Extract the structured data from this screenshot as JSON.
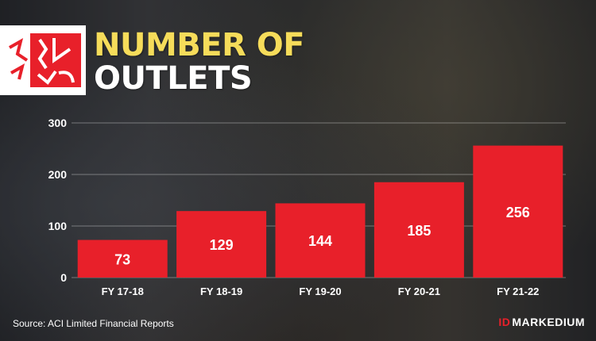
{
  "title": {
    "line1": "NUMBER OF",
    "line2": "OUTLETS"
  },
  "source": "Source: ACI Limited Financial Reports",
  "brand": {
    "mark": "ID",
    "name": "MARKEDIUM"
  },
  "logo_icon": "shwapno-logo-icon",
  "colors": {
    "bar": "#e8202a",
    "title_accent": "#f6dc5a",
    "text": "#ffffff"
  },
  "chart_data": {
    "type": "bar",
    "categories": [
      "FY 17-18",
      "FY 18-19",
      "FY 19-20",
      "FY 20-21",
      "FY 21-22"
    ],
    "values": [
      73,
      129,
      144,
      185,
      256
    ],
    "title": "NUMBER OF OUTLETS",
    "xlabel": "",
    "ylabel": "",
    "ylim": [
      0,
      300
    ],
    "yticks": [
      0,
      100,
      200,
      300
    ],
    "grid": true,
    "data_labels": true
  }
}
